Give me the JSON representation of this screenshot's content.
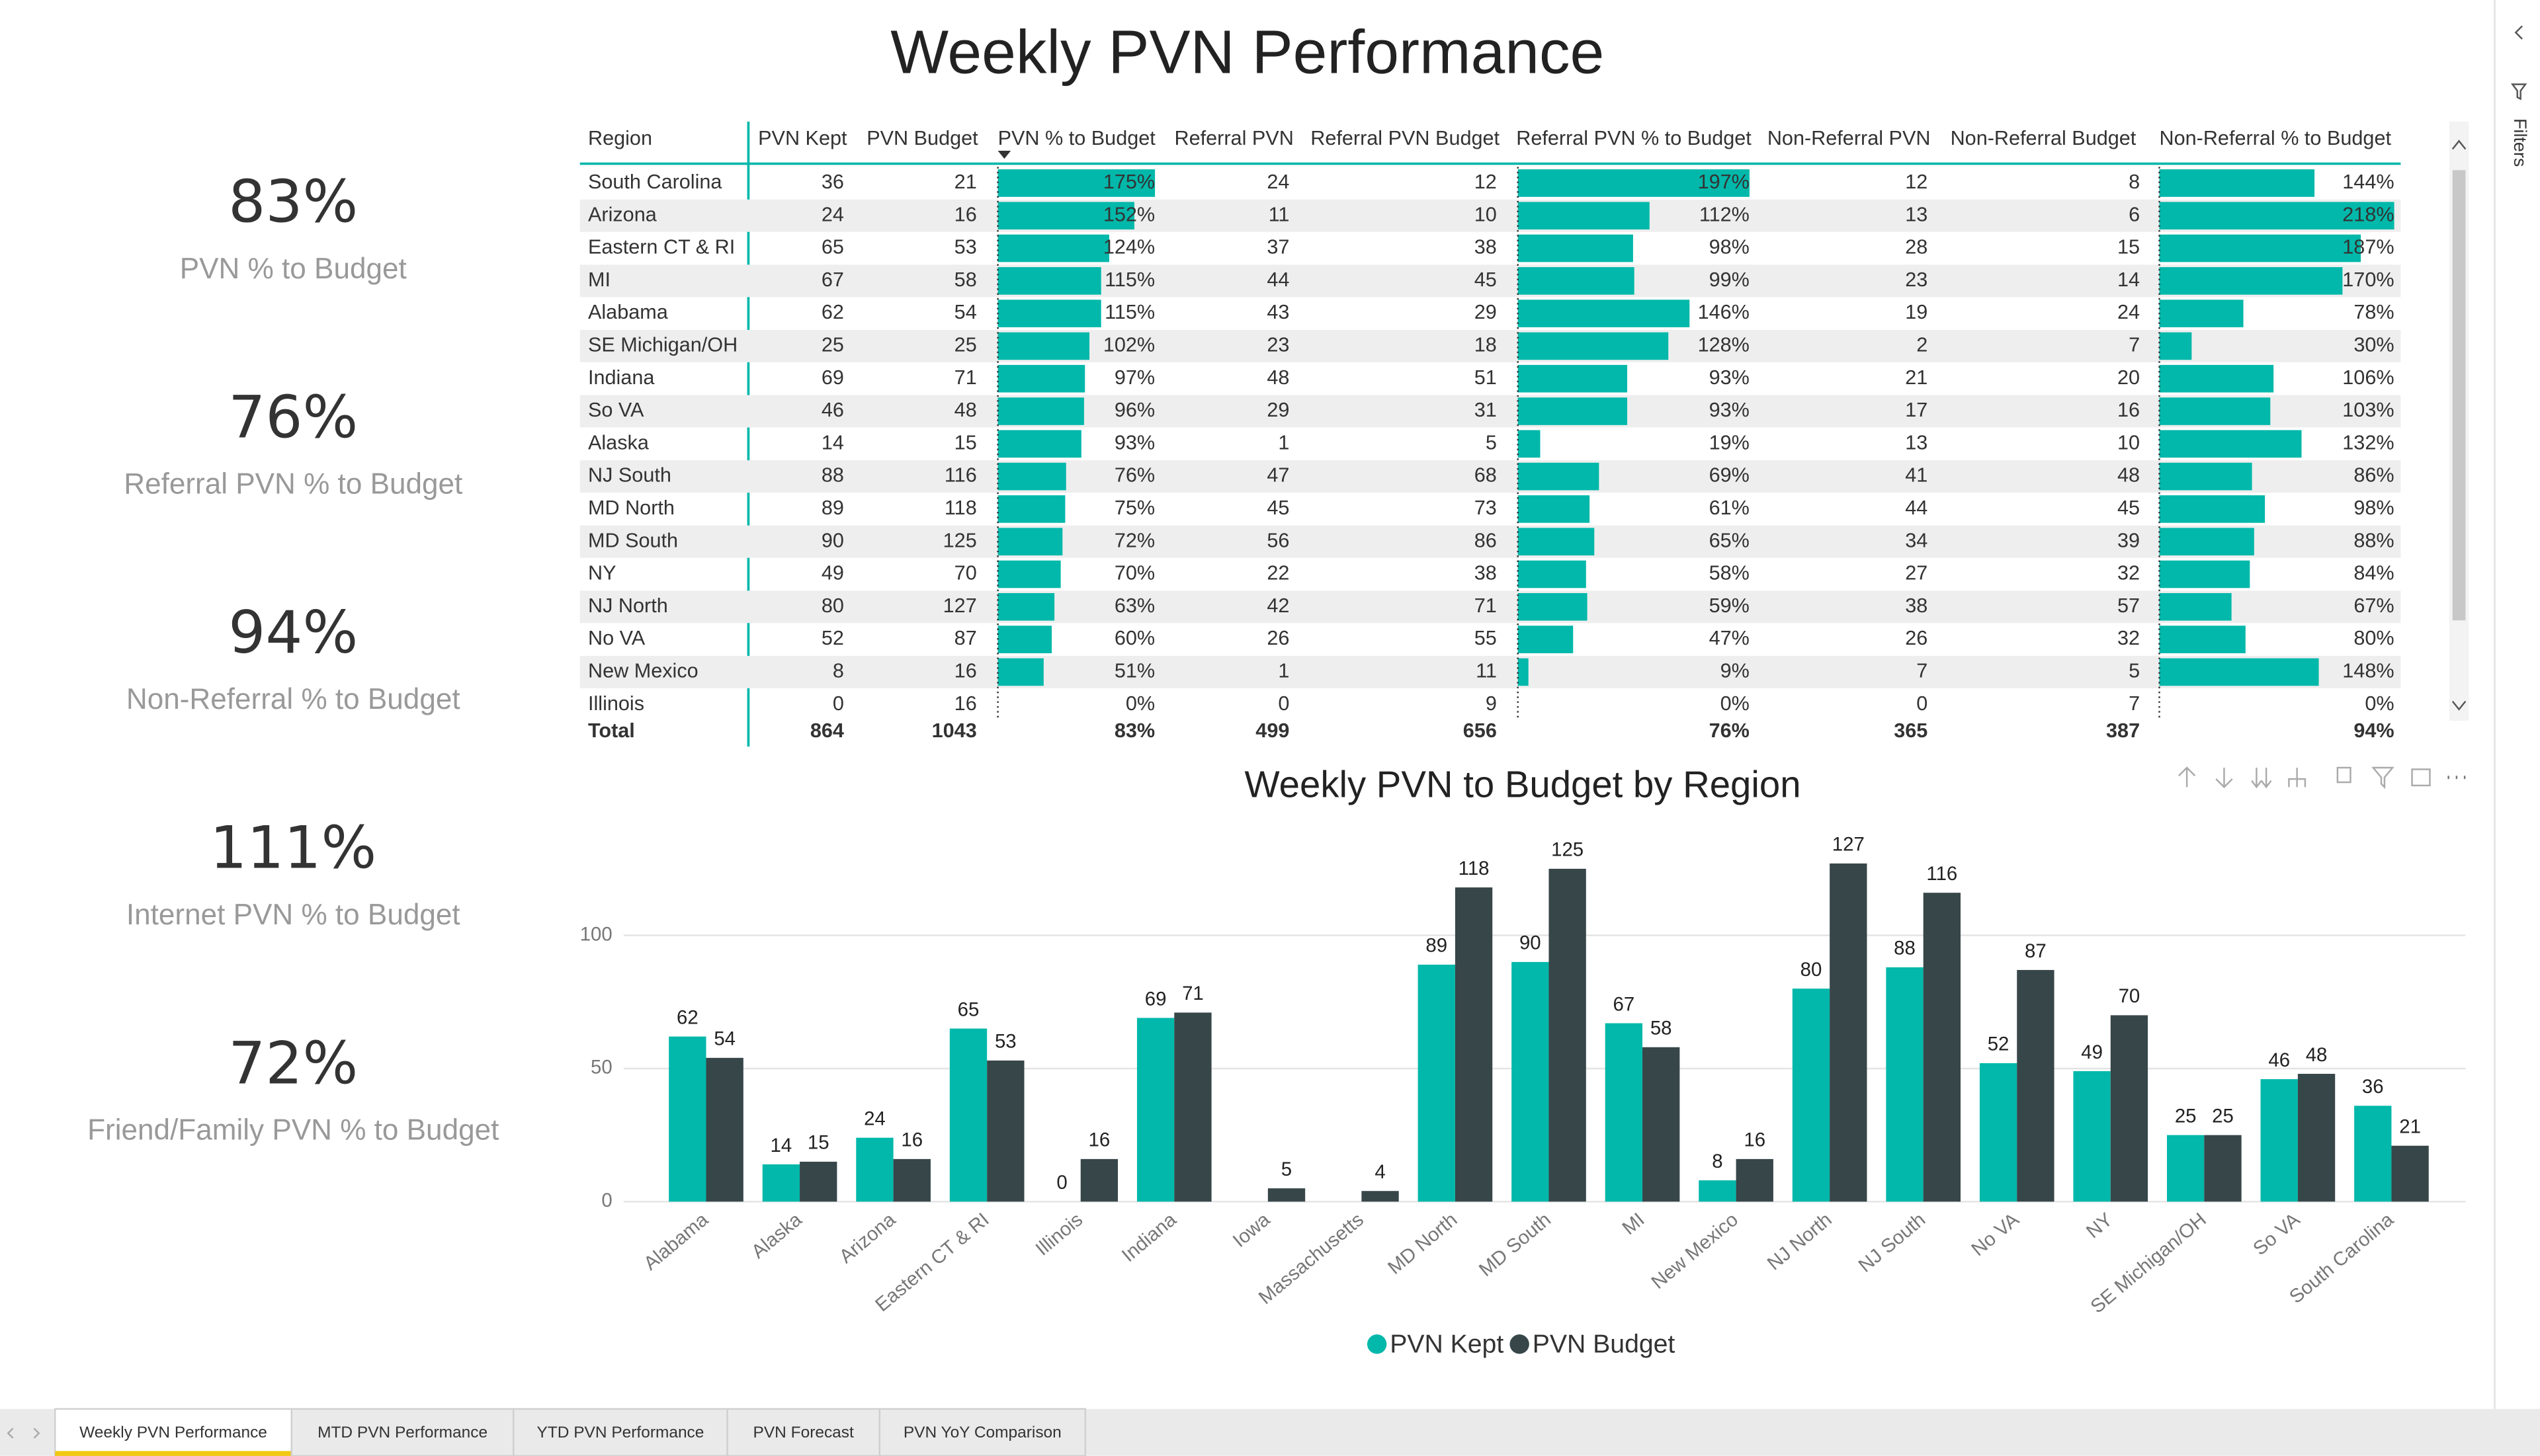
{
  "title": "Weekly PVN Performance",
  "kpis": [
    {
      "value": "83%",
      "label": "PVN % to Budget"
    },
    {
      "value": "76%",
      "label": "Referral PVN % to Budget"
    },
    {
      "value": "94%",
      "label": "Non-Referral % to Budget"
    },
    {
      "value": "111%",
      "label": "Internet PVN % to Budget"
    },
    {
      "value": "72%",
      "label": "Friend/Family PVN % to Budget"
    }
  ],
  "table": {
    "columns": [
      "Region",
      "PVN Kept",
      "PVN Budget",
      "PVN % to Budget",
      "Referral PVN",
      "Referral PVN Budget",
      "Referral PVN % to Budget",
      "Non-Referral PVN",
      "Non-Referral Budget",
      "Non-Referral % to Budget"
    ],
    "rows": [
      [
        "South Carolina",
        "36",
        "21",
        "175%",
        "24",
        "12",
        "197%",
        "12",
        "8",
        "144%"
      ],
      [
        "Arizona",
        "24",
        "16",
        "152%",
        "11",
        "10",
        "112%",
        "13",
        "6",
        "218%"
      ],
      [
        "Eastern CT & RI",
        "65",
        "53",
        "124%",
        "37",
        "38",
        "98%",
        "28",
        "15",
        "187%"
      ],
      [
        "MI",
        "67",
        "58",
        "115%",
        "44",
        "45",
        "99%",
        "23",
        "14",
        "170%"
      ],
      [
        "Alabama",
        "62",
        "54",
        "115%",
        "43",
        "29",
        "146%",
        "19",
        "24",
        "78%"
      ],
      [
        "SE Michigan/OH",
        "25",
        "25",
        "102%",
        "23",
        "18",
        "128%",
        "2",
        "7",
        "30%"
      ],
      [
        "Indiana",
        "69",
        "71",
        "97%",
        "48",
        "51",
        "93%",
        "21",
        "20",
        "106%"
      ],
      [
        "So VA",
        "46",
        "48",
        "96%",
        "29",
        "31",
        "93%",
        "17",
        "16",
        "103%"
      ],
      [
        "Alaska",
        "14",
        "15",
        "93%",
        "1",
        "5",
        "19%",
        "13",
        "10",
        "132%"
      ],
      [
        "NJ South",
        "88",
        "116",
        "76%",
        "47",
        "68",
        "69%",
        "41",
        "48",
        "86%"
      ],
      [
        "MD North",
        "89",
        "118",
        "75%",
        "45",
        "73",
        "61%",
        "44",
        "45",
        "98%"
      ],
      [
        "MD South",
        "90",
        "125",
        "72%",
        "56",
        "86",
        "65%",
        "34",
        "39",
        "88%"
      ],
      [
        "NY",
        "49",
        "70",
        "70%",
        "22",
        "38",
        "58%",
        "27",
        "32",
        "84%"
      ],
      [
        "NJ North",
        "80",
        "127",
        "63%",
        "42",
        "71",
        "59%",
        "38",
        "57",
        "67%"
      ],
      [
        "No VA",
        "52",
        "87",
        "60%",
        "26",
        "55",
        "47%",
        "26",
        "32",
        "80%"
      ],
      [
        "New Mexico",
        "8",
        "16",
        "51%",
        "1",
        "11",
        "9%",
        "7",
        "5",
        "148%"
      ],
      [
        "Illinois",
        "0",
        "16",
        "0%",
        "0",
        "9",
        "0%",
        "0",
        "7",
        "0%"
      ]
    ],
    "total": [
      "Total",
      "864",
      "1043",
      "83%",
      "499",
      "656",
      "76%",
      "365",
      "387",
      "94%"
    ]
  },
  "chart_data": {
    "type": "bar",
    "title": "Weekly PVN to Budget by Region",
    "categories": [
      "Alabama",
      "Alaska",
      "Arizona",
      "Eastern CT & RI",
      "Illinois",
      "Indiana",
      "Iowa",
      "Massachusetts",
      "MD North",
      "MD South",
      "MI",
      "New Mexico",
      "NJ North",
      "NJ South",
      "No VA",
      "NY",
      "SE Michigan/OH",
      "So VA",
      "South Carolina"
    ],
    "series": [
      {
        "name": "PVN Kept",
        "color": "#01b8aa",
        "values": [
          62,
          14,
          24,
          65,
          0,
          69,
          null,
          null,
          89,
          90,
          67,
          8,
          80,
          88,
          52,
          49,
          25,
          46,
          36
        ]
      },
      {
        "name": "PVN Budget",
        "color": "#374649",
        "values": [
          54,
          15,
          16,
          53,
          16,
          71,
          5,
          4,
          118,
          125,
          58,
          16,
          127,
          116,
          87,
          70,
          25,
          48,
          21
        ]
      }
    ],
    "ylim": [
      0,
      135
    ],
    "yticks": [
      0,
      50,
      100
    ],
    "grid": true,
    "legend": "bottom"
  },
  "tabs": [
    "Weekly PVN Performance",
    "MTD PVN Performance",
    "YTD PVN Performance",
    "PVN Forecast",
    "PVN YoY Comparison"
  ],
  "sidebar": {
    "label": "Filters"
  }
}
